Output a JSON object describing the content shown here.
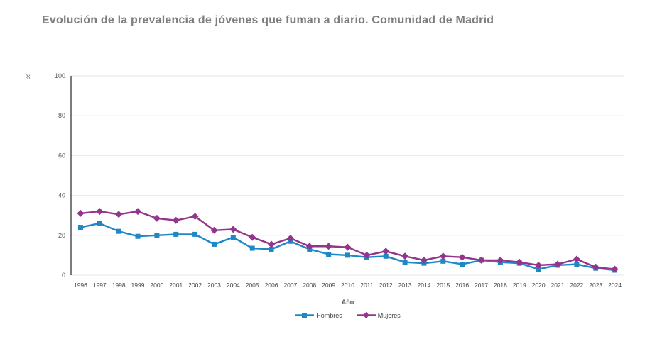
{
  "chart_data": {
    "type": "line",
    "title": "Evolución de la prevalencia de jóvenes que fuman a diario. Comunidad de Madrid",
    "xlabel": "Año",
    "ylabel": "%",
    "ylim": [
      0,
      100
    ],
    "yticks": [
      0,
      20,
      40,
      60,
      80,
      100
    ],
    "grid": true,
    "legend_position": "bottom",
    "x": [
      "1996",
      "1997",
      "1998",
      "1999",
      "2000",
      "2001",
      "2002",
      "2003",
      "2004",
      "2005",
      "2006",
      "2007",
      "2008",
      "2009",
      "2010",
      "2011",
      "2012",
      "2013",
      "2014",
      "2015",
      "2016",
      "2017",
      "2018",
      "2019",
      "2020",
      "2021",
      "2022",
      "2023",
      "2024"
    ],
    "series": [
      {
        "name": "Hombres",
        "color": "#1E88C7",
        "marker": "square",
        "values": [
          24,
          26,
          22,
          19.5,
          20,
          20.5,
          20.5,
          15.5,
          19,
          13.5,
          13,
          17,
          13,
          10.5,
          10,
          9,
          9.5,
          6.5,
          6,
          7,
          5.5,
          7.5,
          6.5,
          6,
          3,
          5,
          5.5,
          3.5,
          2.5
        ]
      },
      {
        "name": "Mujeres",
        "color": "#94358C",
        "marker": "diamond",
        "values": [
          31,
          32,
          30.5,
          32,
          28.5,
          27.5,
          29.5,
          22.5,
          23,
          19,
          15.5,
          18.5,
          14.5,
          14.5,
          14,
          10,
          12,
          9.5,
          7.5,
          9.5,
          9,
          7.5,
          7.5,
          6.5,
          5,
          5.5,
          8,
          4,
          3
        ]
      }
    ],
    "colors": {
      "grid": "#E6E6E6",
      "axis_line": "#262626",
      "tick_text": "#595959",
      "title_text": "#7D7D7D"
    }
  }
}
